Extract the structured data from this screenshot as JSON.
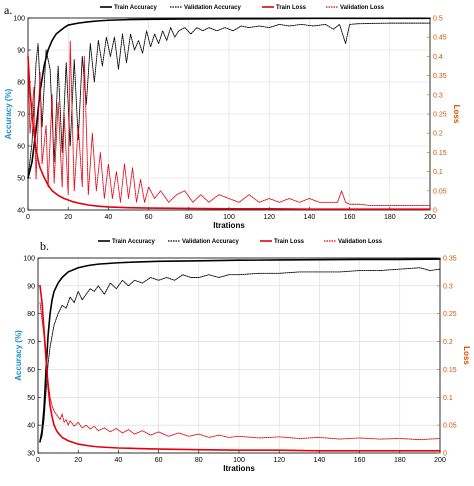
{
  "colors": {
    "train_accuracy": "#000000",
    "validation_accuracy": "#000000",
    "train_loss": "#e3000f",
    "validation_loss": "#e3000f",
    "left_axis_title": "#1a8cc8",
    "right_axis_title": "#d35400",
    "right_ticks": "#d35400",
    "grid": "#d9d9d9"
  },
  "chart_data": [
    {
      "panel_label": "a.",
      "type": "line",
      "xlabel": "Itrations",
      "ylabel_left": "Accuracy (%)",
      "ylabel_right": "Loss",
      "xlim": [
        0,
        200
      ],
      "ylim_left": [
        40,
        100
      ],
      "ylim_right": [
        0,
        0.5
      ],
      "xticks": [
        "0",
        "20",
        "40",
        "60",
        "80",
        "100",
        "120",
        "140",
        "160",
        "180",
        "200"
      ],
      "yticks_left": [
        "40",
        "50",
        "60",
        "70",
        "80",
        "90",
        "100"
      ],
      "yticks_right": [
        "0",
        "0.05",
        "0.1",
        "0.15",
        "0.2",
        "0.25",
        "0.3",
        "0.35",
        "0.4",
        "0.45",
        "0.5"
      ],
      "grid": true,
      "legend_position": "top",
      "legend": [
        "Train Accuracy",
        "Validation Accuracy",
        "Train Loss",
        "Validation Loss"
      ],
      "series": [
        {
          "name": "Train Accuracy",
          "axis": "left",
          "style": "solid",
          "x": [
            0,
            2,
            4,
            6,
            8,
            10,
            12,
            14,
            16,
            18,
            20,
            25,
            30,
            35,
            40,
            50,
            60,
            80,
            100,
            120,
            140,
            160,
            180,
            200
          ],
          "y": [
            50,
            55,
            65,
            77,
            85,
            90,
            93,
            95,
            96,
            97,
            97.8,
            98.4,
            98.8,
            99.1,
            99.3,
            99.5,
            99.6,
            99.7,
            99.8,
            99.8,
            99.9,
            99.9,
            99.9,
            99.9
          ]
        },
        {
          "name": "Validation Accuracy",
          "axis": "left",
          "style": "dotted",
          "x": [
            0,
            2,
            4,
            5,
            7,
            9,
            11,
            13,
            15,
            17,
            19,
            21,
            23,
            25,
            27,
            29,
            31,
            33,
            35,
            37,
            39,
            41,
            43,
            45,
            47,
            49,
            51,
            53,
            55,
            57,
            59,
            61,
            63,
            65,
            67,
            69,
            71,
            73,
            75,
            78,
            81,
            84,
            87,
            90,
            94,
            98,
            102,
            106,
            110,
            115,
            120,
            125,
            130,
            136,
            142,
            148,
            152,
            155,
            158,
            160,
            164,
            170,
            180,
            190,
            200
          ],
          "y": [
            50,
            61,
            86,
            92,
            66,
            90,
            84,
            55,
            85,
            58,
            86,
            60,
            87,
            62,
            88,
            73,
            92,
            80,
            93,
            85,
            94,
            88,
            94,
            84,
            95,
            86,
            95,
            90,
            93,
            89,
            96,
            91,
            95,
            92,
            96,
            93,
            97,
            94,
            96,
            97,
            95,
            97,
            96,
            97,
            96,
            97,
            96,
            97.5,
            97,
            97.5,
            97,
            98,
            97.5,
            98,
            97.5,
            98,
            96.5,
            98,
            92,
            98,
            98.2,
            98.3,
            98.4,
            98.4,
            98.4
          ]
        },
        {
          "name": "Train Loss",
          "axis": "right",
          "style": "solid",
          "x": [
            0,
            1,
            2,
            3,
            4,
            5,
            6,
            8,
            10,
            12,
            15,
            18,
            22,
            26,
            30,
            35,
            40,
            50,
            60,
            80,
            100,
            120,
            140,
            160,
            180,
            200
          ],
          "y": [
            0.4,
            0.31,
            0.25,
            0.2,
            0.16,
            0.13,
            0.11,
            0.085,
            0.065,
            0.05,
            0.038,
            0.03,
            0.022,
            0.017,
            0.013,
            0.01,
            0.008,
            0.006,
            0.005,
            0.004,
            0.003,
            0.003,
            0.002,
            0.002,
            0.002,
            0.002
          ]
        },
        {
          "name": "Validation Loss",
          "axis": "right",
          "style": "dotted",
          "x": [
            0,
            1,
            3,
            4,
            6,
            7,
            9,
            10,
            12,
            13,
            15,
            17,
            18,
            20,
            21,
            23,
            25,
            27,
            28,
            30,
            32,
            34,
            36,
            38,
            40,
            42,
            44,
            46,
            48,
            50,
            52,
            54,
            56,
            58,
            60,
            63,
            66,
            70,
            74,
            78,
            82,
            86,
            90,
            95,
            100,
            105,
            110,
            115,
            120,
            125,
            130,
            135,
            140,
            145,
            150,
            154,
            156,
            158,
            160,
            165,
            170,
            180,
            190,
            200
          ],
          "y": [
            0.4,
            0.2,
            0.32,
            0.08,
            0.36,
            0.12,
            0.22,
            0.06,
            0.3,
            0.07,
            0.28,
            0.06,
            0.25,
            0.04,
            0.44,
            0.05,
            0.22,
            0.06,
            0.4,
            0.04,
            0.2,
            0.05,
            0.15,
            0.03,
            0.12,
            0.03,
            0.1,
            0.02,
            0.12,
            0.03,
            0.11,
            0.02,
            0.08,
            0.02,
            0.06,
            0.03,
            0.05,
            0.02,
            0.04,
            0.05,
            0.02,
            0.04,
            0.02,
            0.04,
            0.03,
            0.02,
            0.04,
            0.02,
            0.03,
            0.02,
            0.03,
            0.02,
            0.03,
            0.02,
            0.02,
            0.02,
            0.05,
            0.02,
            0.015,
            0.015,
            0.012,
            0.012,
            0.012,
            0.012
          ]
        }
      ]
    },
    {
      "panel_label": "b.",
      "type": "line",
      "xlabel": "Itrations",
      "ylabel_left": "Accuracy (%)",
      "ylabel_right": "Loss",
      "xlim": [
        0,
        200
      ],
      "ylim_left": [
        30,
        100
      ],
      "ylim_right": [
        0,
        0.35
      ],
      "xticks": [
        "0",
        "20",
        "40",
        "60",
        "80",
        "100",
        "120",
        "140",
        "160",
        "180",
        "200"
      ],
      "yticks_left": [
        "30",
        "40",
        "50",
        "60",
        "70",
        "80",
        "90",
        "100"
      ],
      "yticks_right": [
        "0",
        "0.05",
        "0.1",
        "0.15",
        "0.2",
        "0.25",
        "0.3",
        "0.35"
      ],
      "grid": true,
      "legend_position": "top",
      "legend": [
        "Train Accuracy",
        "Validation Accuracy",
        "Train Loss",
        "Validation Loss"
      ],
      "series": [
        {
          "name": "Train Accuracy",
          "axis": "left",
          "style": "solid",
          "x": [
            1,
            2,
            3,
            4,
            5,
            6,
            7,
            8,
            10,
            12,
            15,
            20,
            25,
            30,
            40,
            50,
            60,
            80,
            100,
            120,
            140,
            160,
            180,
            200
          ],
          "y": [
            34,
            38,
            46,
            60,
            72,
            80,
            85,
            88,
            91,
            93,
            95,
            96.5,
            97.3,
            97.8,
            98.3,
            98.6,
            98.8,
            99,
            99.2,
            99.3,
            99.4,
            99.5,
            99.5,
            99.6
          ]
        },
        {
          "name": "Validation Accuracy",
          "axis": "left",
          "style": "dotted",
          "x": [
            1,
            2,
            3,
            4,
            5,
            6,
            7,
            8,
            9,
            10,
            12,
            14,
            16,
            18,
            20,
            22,
            24,
            26,
            28,
            30,
            33,
            36,
            39,
            42,
            45,
            48,
            52,
            56,
            60,
            64,
            68,
            72,
            76,
            80,
            85,
            90,
            95,
            100,
            110,
            120,
            130,
            140,
            150,
            160,
            170,
            180,
            190,
            195,
            200
          ],
          "y": [
            34,
            36,
            42,
            52,
            62,
            68,
            72,
            76,
            78,
            80,
            83,
            82,
            86,
            84,
            88,
            85,
            87,
            89,
            88,
            90,
            87,
            91,
            89,
            92,
            90,
            92,
            91,
            93,
            92,
            93,
            92,
            94,
            93,
            93,
            94,
            93,
            94,
            94,
            94.5,
            94.5,
            95,
            95,
            95,
            95.5,
            95.5,
            96,
            96.5,
            95.5,
            96
          ]
        },
        {
          "name": "Train Loss",
          "axis": "right",
          "style": "solid",
          "x": [
            1,
            2,
            3,
            4,
            5,
            6,
            7,
            8,
            9,
            10,
            12,
            15,
            20,
            25,
            30,
            40,
            50,
            60,
            80,
            100,
            120,
            140,
            160,
            180,
            200
          ],
          "y": [
            0.3,
            0.27,
            0.22,
            0.17,
            0.12,
            0.085,
            0.065,
            0.05,
            0.042,
            0.036,
            0.028,
            0.022,
            0.016,
            0.013,
            0.011,
            0.009,
            0.008,
            0.007,
            0.006,
            0.005,
            0.005,
            0.004,
            0.004,
            0.004,
            0.004
          ]
        },
        {
          "name": "Validation Loss",
          "axis": "right",
          "style": "dotted",
          "x": [
            1,
            2,
            3,
            4,
            5,
            6,
            7,
            8,
            9,
            10,
            11,
            12,
            13,
            14,
            15,
            16,
            18,
            20,
            22,
            24,
            26,
            28,
            30,
            33,
            36,
            39,
            42,
            45,
            48,
            52,
            56,
            60,
            65,
            70,
            75,
            80,
            85,
            90,
            95,
            100,
            110,
            120,
            130,
            140,
            150,
            160,
            170,
            180,
            190,
            200
          ],
          "y": [
            0.27,
            0.24,
            0.21,
            0.16,
            0.13,
            0.1,
            0.085,
            0.075,
            0.07,
            0.065,
            0.06,
            0.07,
            0.055,
            0.06,
            0.05,
            0.058,
            0.048,
            0.055,
            0.045,
            0.05,
            0.043,
            0.048,
            0.04,
            0.045,
            0.038,
            0.044,
            0.036,
            0.042,
            0.034,
            0.04,
            0.032,
            0.038,
            0.03,
            0.036,
            0.03,
            0.034,
            0.028,
            0.032,
            0.028,
            0.03,
            0.027,
            0.029,
            0.026,
            0.028,
            0.025,
            0.027,
            0.025,
            0.026,
            0.024,
            0.026
          ]
        }
      ]
    }
  ]
}
